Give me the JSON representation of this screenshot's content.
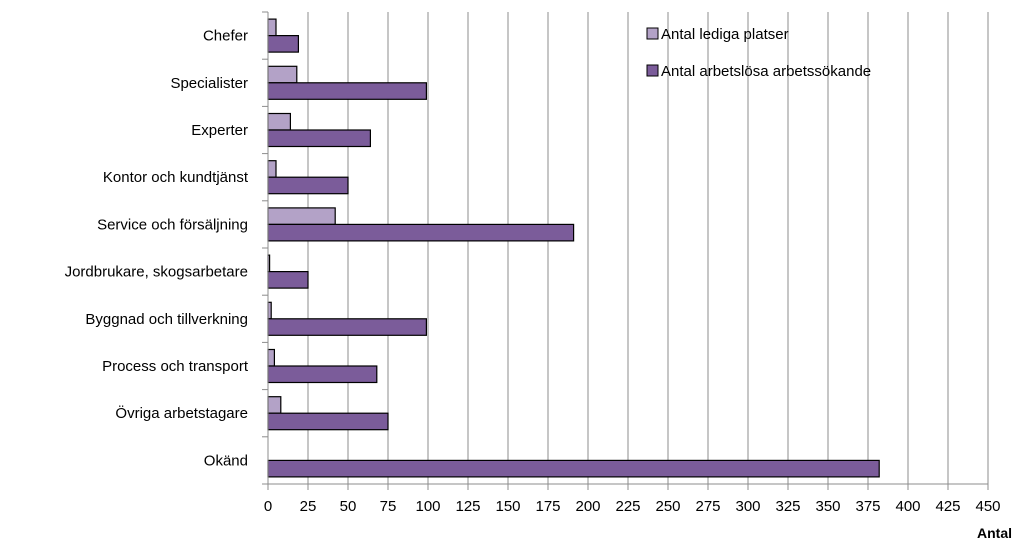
{
  "chart_data": {
    "type": "bar",
    "orientation": "horizontal",
    "categories": [
      "Chefer",
      "Specialister",
      "Experter",
      "Kontor och kundtjänst",
      "Service och försäljning",
      "Jordbrukare, skogsarbetare",
      "Byggnad och tillverkning",
      "Process och transport",
      "Övriga arbetstagare",
      "Okänd"
    ],
    "series": [
      {
        "name": "Antal lediga platser",
        "color": "#b3a2c7",
        "values": [
          5,
          18,
          14,
          5,
          42,
          1,
          2,
          4,
          8,
          0
        ]
      },
      {
        "name": "Antal arbetslösa arbetssökande",
        "color": "#7b5c9a",
        "values": [
          19,
          99,
          64,
          50,
          191,
          25,
          99,
          68,
          75,
          382
        ]
      }
    ],
    "xlabel": "Antal",
    "xlim": [
      0,
      450
    ],
    "xticks": [
      0,
      25,
      50,
      75,
      100,
      125,
      150,
      175,
      200,
      225,
      250,
      275,
      300,
      325,
      350,
      375,
      400,
      425,
      450
    ],
    "grid": "vertical",
    "legend_position": "top-right"
  }
}
